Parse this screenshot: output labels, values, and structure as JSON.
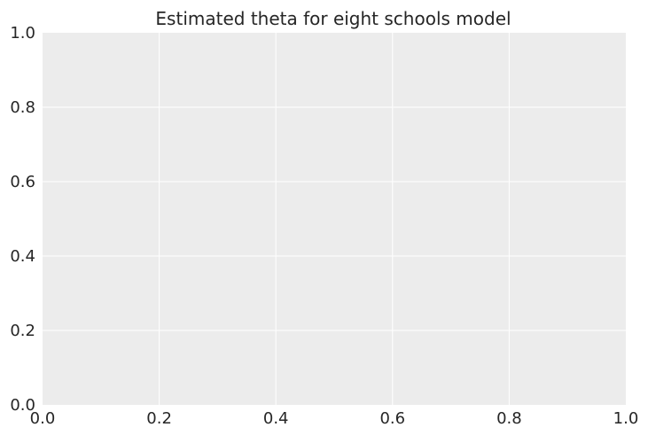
{
  "chart_data": {
    "type": "line",
    "title": "Estimated theta for eight schools model",
    "xlabel": "",
    "ylabel": "",
    "xlim": [
      0.0,
      1.0
    ],
    "ylim": [
      0.0,
      1.0
    ],
    "x_ticks": [
      "0.0",
      "0.2",
      "0.4",
      "0.6",
      "0.8",
      "1.0"
    ],
    "y_ticks": [
      "0.0",
      "0.2",
      "0.4",
      "0.6",
      "0.8",
      "1.0"
    ],
    "series": [],
    "grid": true,
    "background_color": "#ececec",
    "grid_color": "#ffffff",
    "text_color": "#262626"
  }
}
